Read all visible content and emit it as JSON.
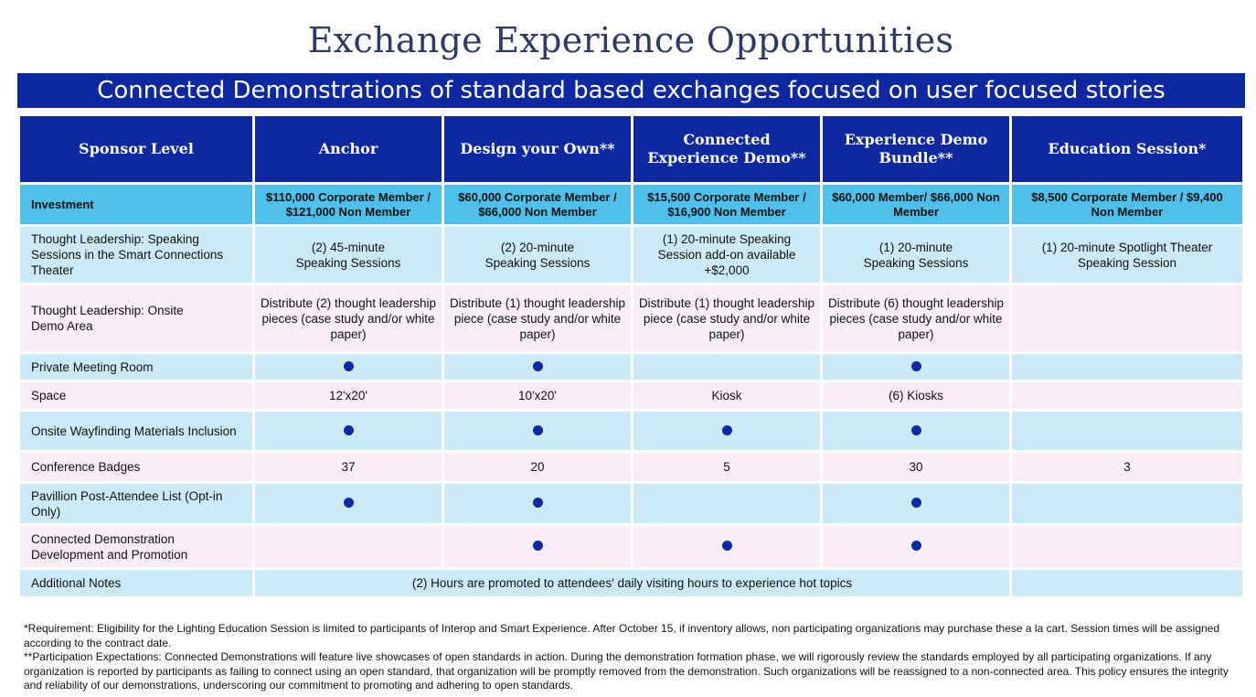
{
  "title": "Exchange Experience Opportunities",
  "banner": "Connected Demonstrations of standard based exchanges focused on user focused stories",
  "colors": {
    "dark_blue": "#0d28a0",
    "investment_blue": "#4ec0ea",
    "light_blue": "#cbeaf6",
    "light_pink": "#f9eef8"
  },
  "table": {
    "headers": [
      "Sponsor Level",
      "Anchor",
      "Design your Own**",
      "Connected Experience Demo**",
      "Experience Demo Bundle**",
      "Education Session*"
    ],
    "investment": {
      "label": "Investment",
      "values": [
        "$110,000 Corporate Member / $121,000 Non Member",
        "$60,000 Corporate Member / $66,000 Non Member",
        "$15,500 Corporate Member / $16,900 Non Member",
        "$60,000 Member/ $66,000 Non Member",
        "$8,500 Corporate Member / $9,400 Non Member"
      ]
    },
    "speaking": {
      "label": "Thought Leadership: Speaking Sessions in the Smart Connections Theater",
      "values": [
        "(2) 45-minute Speaking Sessions",
        "(2) 20-minute Speaking Sessions",
        "(1) 20-minute Speaking Session add-on available +$2,000",
        "(1) 20-minute Speaking Sessions",
        "(1) 20-minute Spotlight Theater Speaking Session"
      ]
    },
    "demo_area": {
      "label": "Thought Leadership: Onsite Demo Area",
      "values": [
        "Distribute (2) thought leadership pieces (case study and/or white paper)",
        "Distribute (1) thought leadership piece (case study and/or white paper)",
        "Distribute (1) thought leadership piece (case study and/or white paper)",
        "Distribute (6) thought leadership pieces (case study and/or white paper)",
        ""
      ]
    },
    "meeting_room": {
      "label": "Private Meeting Room",
      "included": [
        true,
        true,
        false,
        true,
        false
      ]
    },
    "space": {
      "label": "Space",
      "values": [
        "12'x20'",
        "10'x20'",
        "Kiosk",
        "(6) Kiosks",
        ""
      ]
    },
    "wayfinding": {
      "label": "Onsite Wayfinding Materials Inclusion",
      "included": [
        true,
        true,
        true,
        true,
        false
      ]
    },
    "badges": {
      "label": "Conference Badges",
      "values": [
        "37",
        "20",
        "5",
        "30",
        "3"
      ]
    },
    "attendee_list": {
      "label": "Pavillion Post-Attendee List (Opt-in Only)",
      "included": [
        true,
        true,
        false,
        true,
        false
      ]
    },
    "connected_demo": {
      "label": "Connected Demonstration Development and Promotion",
      "included": [
        false,
        true,
        true,
        true,
        false
      ]
    },
    "notes": {
      "label": "Additional Notes",
      "value": "(2) Hours are promoted to attendees' daily visiting hours to experience hot topics",
      "last": ""
    }
  },
  "footer": {
    "note1": "*Requirement: Eligibility for the Lighting Education Session is limited to participants of Interop and Smart Experience. After October 15, if inventory allows, non participating organizations may purchase these a la cart. Session times will be assigned according to the contract date.",
    "note2": "**Participation Expectations: Connected Demonstrations will feature live showcases of open standards in action. During the demonstration formation phase, we will rigorously review the standards employed by all participating organizations. If any organization is reported by participants as failing to connect using an open standard, that organization will be promptly removed from the demonstration. Such organizations will be reassigned to a non-connected area. This policy ensures the integrity and reliability of our demonstrations, underscoring our commitment to promoting and adhering to open standards."
  }
}
